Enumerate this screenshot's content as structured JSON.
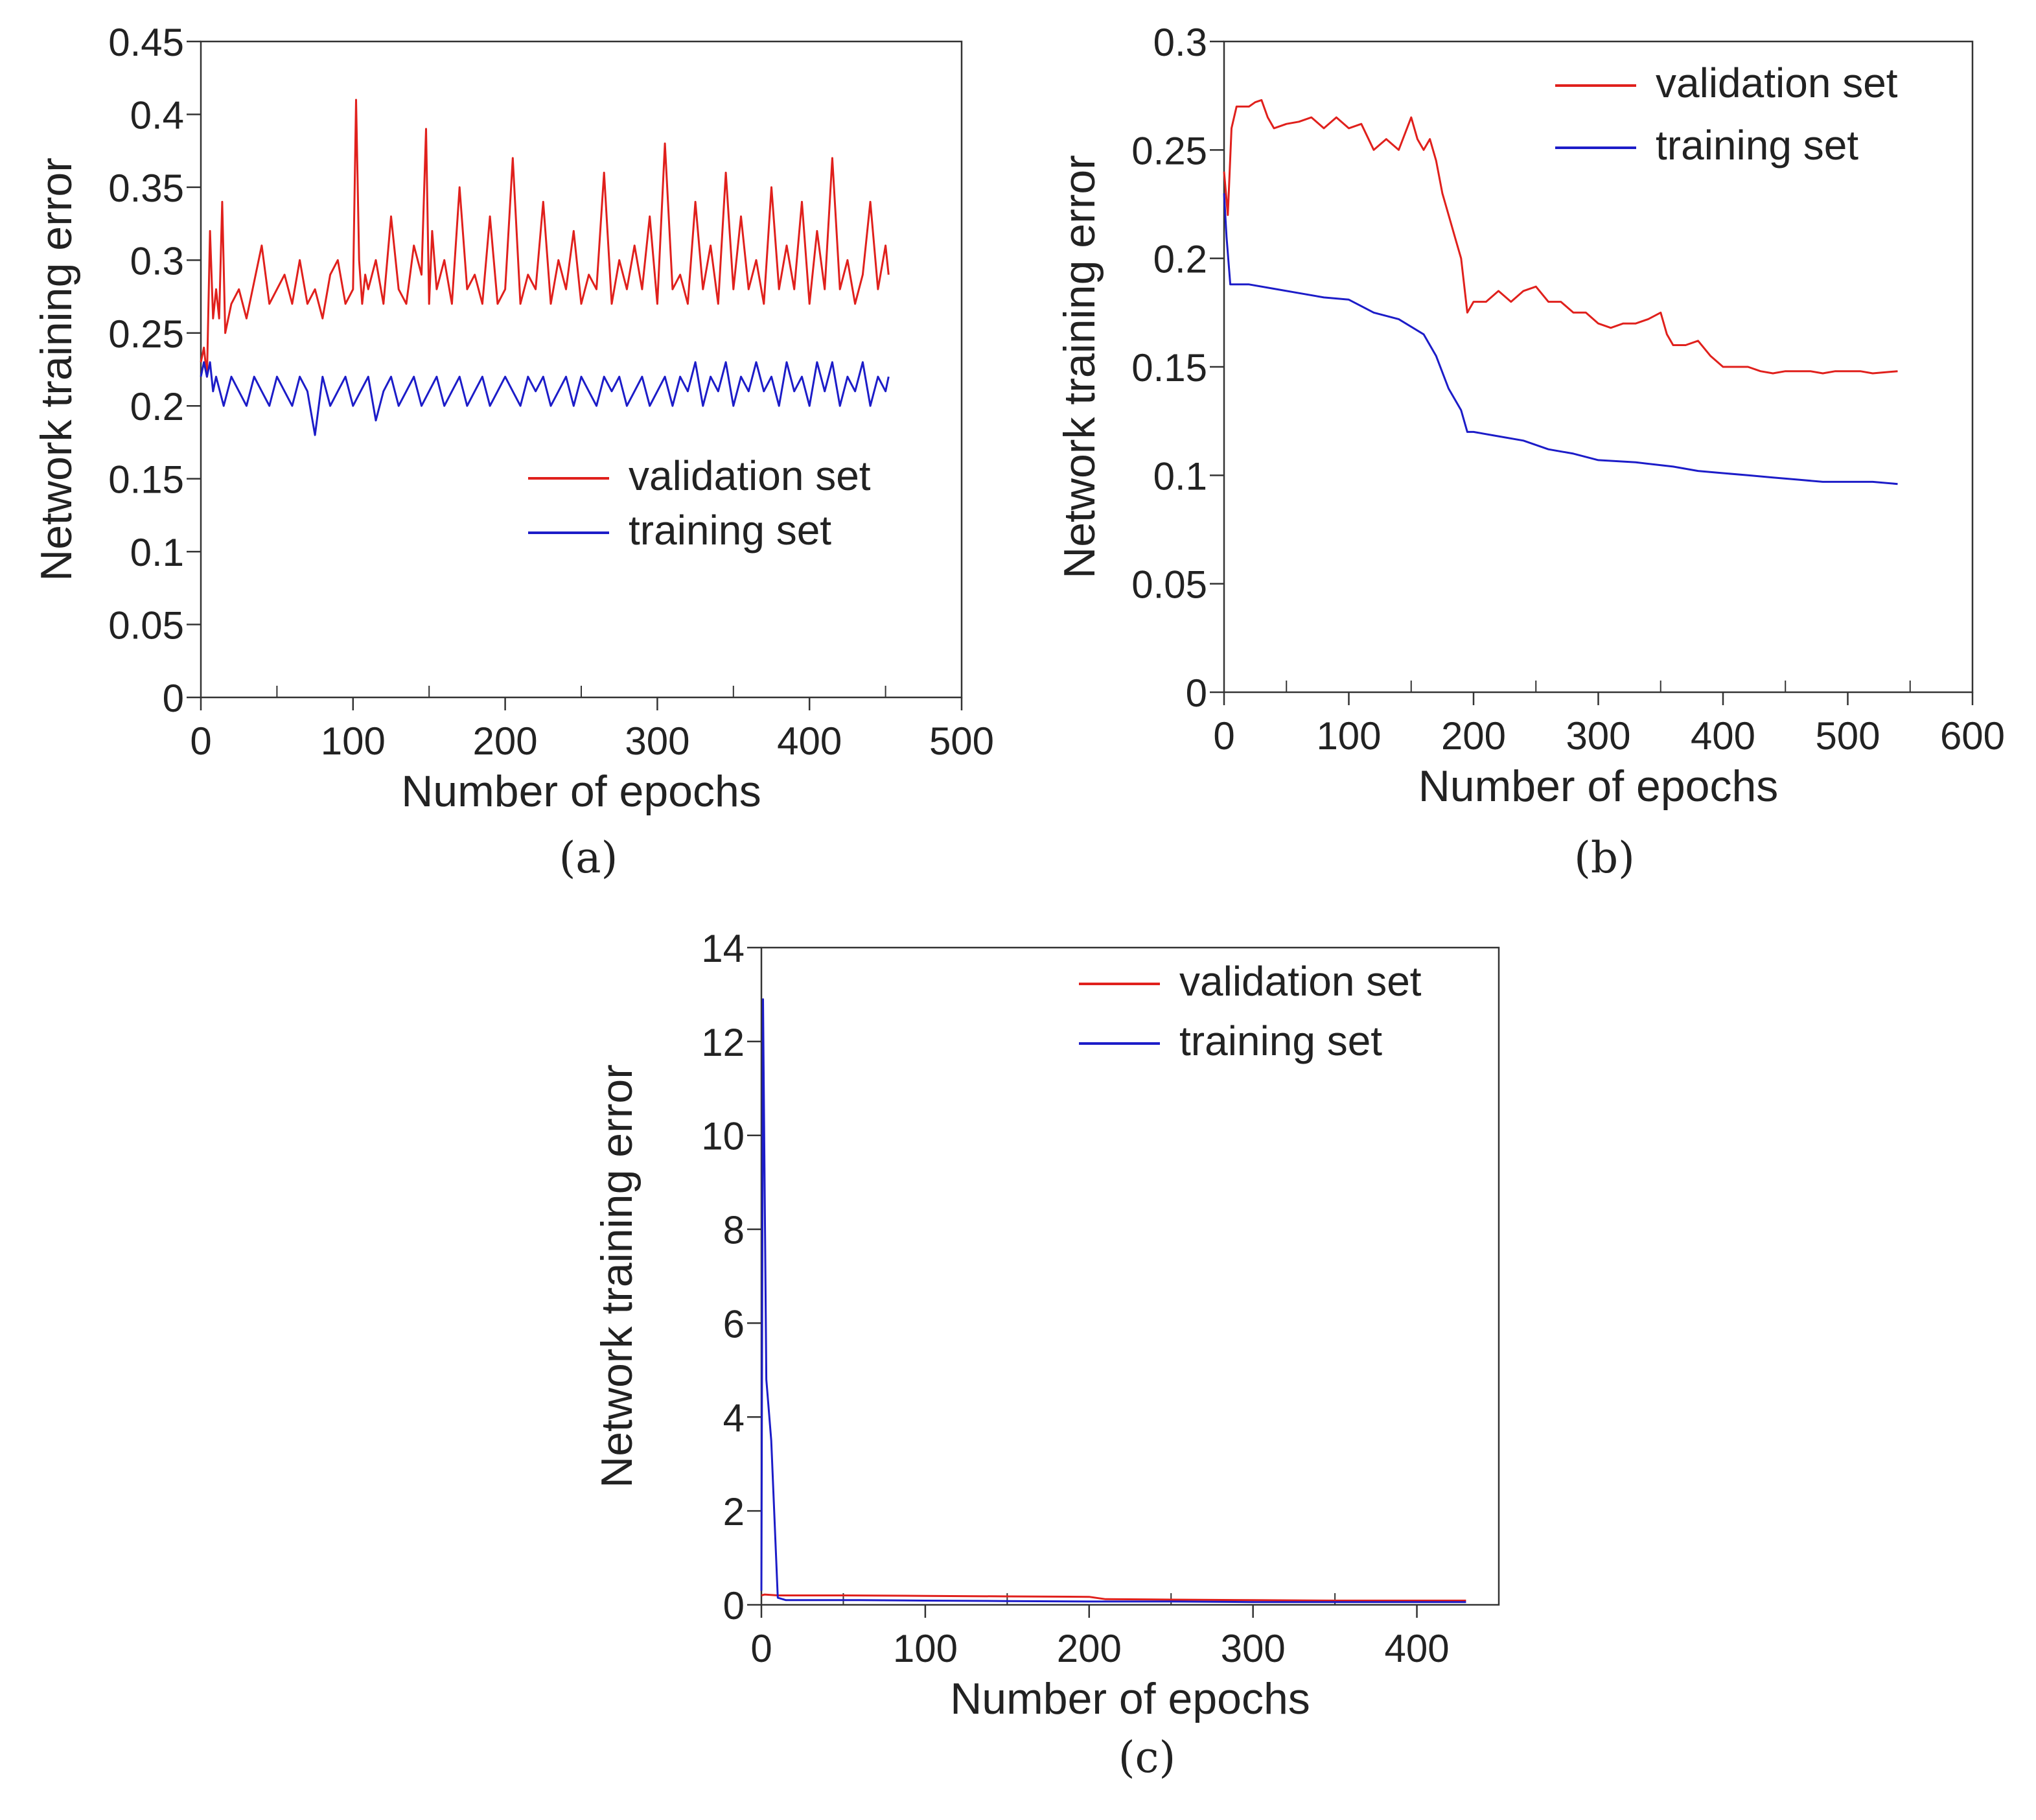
{
  "chart_data": [
    {
      "id": "a",
      "type": "line",
      "caption": "(a)",
      "xlabel": "Number of epochs",
      "ylabel": "Network training error",
      "xlim": [
        0,
        500
      ],
      "ylim": [
        0,
        0.45
      ],
      "xticks": [
        0,
        100,
        200,
        300,
        400,
        500
      ],
      "xtick_labels": [
        "0",
        "100",
        "200",
        "300",
        "400",
        "500"
      ],
      "yticks": [
        0,
        0.05,
        0.1,
        0.15,
        0.2,
        0.25,
        0.3,
        0.35,
        0.4,
        0.45
      ],
      "ytick_labels": [
        "0",
        "0.05",
        "0.1",
        "0.15",
        "0.2",
        "0.25",
        "0.3",
        "0.35",
        "0.4",
        "0.45"
      ],
      "legend": {
        "position": "center-right",
        "entries": [
          "validation set",
          "training set"
        ]
      },
      "series": [
        {
          "name": "validation set",
          "color": "#e0201c",
          "x": [
            0,
            2,
            4,
            6,
            8,
            10,
            12,
            14,
            16,
            20,
            25,
            30,
            40,
            45,
            50,
            55,
            60,
            65,
            70,
            75,
            80,
            85,
            90,
            95,
            100,
            102,
            104,
            106,
            108,
            110,
            115,
            120,
            125,
            130,
            135,
            140,
            145,
            148,
            150,
            152,
            155,
            160,
            165,
            170,
            175,
            180,
            185,
            190,
            195,
            200,
            205,
            210,
            215,
            220,
            225,
            230,
            235,
            240,
            245,
            250,
            255,
            260,
            265,
            270,
            275,
            280,
            285,
            290,
            295,
            300,
            305,
            310,
            315,
            320,
            325,
            330,
            335,
            340,
            345,
            350,
            355,
            360,
            365,
            370,
            375,
            380,
            385,
            390,
            395,
            400,
            405,
            410,
            415,
            420,
            425,
            430,
            435,
            440,
            445,
            450,
            452
          ],
          "y": [
            0.23,
            0.24,
            0.22,
            0.32,
            0.26,
            0.28,
            0.26,
            0.34,
            0.25,
            0.27,
            0.28,
            0.26,
            0.31,
            0.27,
            0.28,
            0.29,
            0.27,
            0.3,
            0.27,
            0.28,
            0.26,
            0.29,
            0.3,
            0.27,
            0.28,
            0.41,
            0.3,
            0.27,
            0.29,
            0.28,
            0.3,
            0.27,
            0.33,
            0.28,
            0.27,
            0.31,
            0.29,
            0.39,
            0.27,
            0.32,
            0.28,
            0.3,
            0.27,
            0.35,
            0.28,
            0.29,
            0.27,
            0.33,
            0.27,
            0.28,
            0.37,
            0.27,
            0.29,
            0.28,
            0.34,
            0.27,
            0.3,
            0.28,
            0.32,
            0.27,
            0.29,
            0.28,
            0.36,
            0.27,
            0.3,
            0.28,
            0.31,
            0.28,
            0.33,
            0.27,
            0.38,
            0.28,
            0.29,
            0.27,
            0.34,
            0.28,
            0.31,
            0.27,
            0.36,
            0.28,
            0.33,
            0.28,
            0.3,
            0.27,
            0.35,
            0.28,
            0.31,
            0.28,
            0.34,
            0.27,
            0.32,
            0.28,
            0.37,
            0.28,
            0.3,
            0.27,
            0.29,
            0.34,
            0.28,
            0.31,
            0.29
          ]
        },
        {
          "name": "training set",
          "color": "#1c1cc8",
          "x": [
            0,
            2,
            4,
            6,
            8,
            10,
            15,
            20,
            25,
            30,
            35,
            40,
            45,
            50,
            55,
            60,
            65,
            70,
            75,
            80,
            85,
            90,
            95,
            100,
            105,
            110,
            115,
            120,
            125,
            130,
            135,
            140,
            145,
            150,
            155,
            160,
            165,
            170,
            175,
            180,
            185,
            190,
            195,
            200,
            205,
            210,
            215,
            220,
            225,
            230,
            235,
            240,
            245,
            250,
            255,
            260,
            265,
            270,
            275,
            280,
            285,
            290,
            295,
            300,
            305,
            310,
            315,
            320,
            325,
            330,
            335,
            340,
            345,
            350,
            355,
            360,
            365,
            370,
            375,
            380,
            385,
            390,
            395,
            400,
            405,
            410,
            415,
            420,
            425,
            430,
            435,
            440,
            445,
            450,
            452
          ],
          "y": [
            0.22,
            0.23,
            0.22,
            0.23,
            0.21,
            0.22,
            0.2,
            0.22,
            0.21,
            0.2,
            0.22,
            0.21,
            0.2,
            0.22,
            0.21,
            0.2,
            0.22,
            0.21,
            0.18,
            0.22,
            0.2,
            0.21,
            0.22,
            0.2,
            0.21,
            0.22,
            0.19,
            0.21,
            0.22,
            0.2,
            0.21,
            0.22,
            0.2,
            0.21,
            0.22,
            0.2,
            0.21,
            0.22,
            0.2,
            0.21,
            0.22,
            0.2,
            0.21,
            0.22,
            0.21,
            0.2,
            0.22,
            0.21,
            0.22,
            0.2,
            0.21,
            0.22,
            0.2,
            0.22,
            0.21,
            0.2,
            0.22,
            0.21,
            0.22,
            0.2,
            0.21,
            0.22,
            0.2,
            0.21,
            0.22,
            0.2,
            0.22,
            0.21,
            0.23,
            0.2,
            0.22,
            0.21,
            0.23,
            0.2,
            0.22,
            0.21,
            0.23,
            0.21,
            0.22,
            0.2,
            0.23,
            0.21,
            0.22,
            0.2,
            0.23,
            0.21,
            0.23,
            0.2,
            0.22,
            0.21,
            0.23,
            0.2,
            0.22,
            0.21,
            0.22
          ]
        }
      ]
    },
    {
      "id": "b",
      "type": "line",
      "caption": "(b)",
      "xlabel": "Number of epochs",
      "ylabel": "Network training error",
      "xlim": [
        0,
        600
      ],
      "ylim": [
        0,
        0.3
      ],
      "xticks": [
        0,
        100,
        200,
        300,
        400,
        500,
        600
      ],
      "xtick_labels": [
        "0",
        "100",
        "200",
        "300",
        "400",
        "500",
        "600"
      ],
      "yticks": [
        0,
        0.05,
        0.1,
        0.15,
        0.2,
        0.25,
        0.3
      ],
      "ytick_labels": [
        "0",
        "0.05",
        "0.1",
        "0.15",
        "0.2",
        "0.25",
        "0.3"
      ],
      "legend": {
        "position": "top-right",
        "entries": [
          "validation set",
          "training set"
        ]
      },
      "series": [
        {
          "name": "validation set",
          "color": "#e0201c",
          "x": [
            0,
            3,
            6,
            10,
            15,
            20,
            25,
            30,
            35,
            40,
            50,
            60,
            70,
            80,
            90,
            100,
            110,
            120,
            130,
            140,
            150,
            155,
            160,
            165,
            170,
            175,
            180,
            185,
            190,
            195,
            200,
            210,
            220,
            230,
            240,
            250,
            260,
            270,
            280,
            290,
            300,
            310,
            320,
            330,
            340,
            350,
            355,
            360,
            370,
            380,
            390,
            400,
            410,
            420,
            430,
            440,
            450,
            460,
            470,
            480,
            490,
            500,
            510,
            520,
            540
          ],
          "y": [
            0.24,
            0.22,
            0.26,
            0.27,
            0.27,
            0.27,
            0.272,
            0.273,
            0.265,
            0.26,
            0.262,
            0.263,
            0.265,
            0.26,
            0.265,
            0.26,
            0.262,
            0.25,
            0.255,
            0.25,
            0.265,
            0.255,
            0.25,
            0.255,
            0.245,
            0.23,
            0.22,
            0.21,
            0.2,
            0.175,
            0.18,
            0.18,
            0.185,
            0.18,
            0.185,
            0.187,
            0.18,
            0.18,
            0.175,
            0.175,
            0.17,
            0.168,
            0.17,
            0.17,
            0.172,
            0.175,
            0.165,
            0.16,
            0.16,
            0.162,
            0.155,
            0.15,
            0.15,
            0.15,
            0.148,
            0.147,
            0.148,
            0.148,
            0.148,
            0.147,
            0.148,
            0.148,
            0.148,
            0.147,
            0.148
          ]
        },
        {
          "name": "training set",
          "color": "#1c1cc8",
          "x": [
            0,
            2,
            5,
            10,
            20,
            40,
            60,
            80,
            100,
            120,
            140,
            160,
            170,
            180,
            190,
            195,
            200,
            220,
            240,
            260,
            280,
            300,
            330,
            360,
            380,
            400,
            420,
            440,
            460,
            480,
            500,
            520,
            540
          ],
          "y": [
            0.23,
            0.21,
            0.188,
            0.188,
            0.188,
            0.186,
            0.184,
            0.182,
            0.181,
            0.175,
            0.172,
            0.165,
            0.155,
            0.14,
            0.13,
            0.12,
            0.12,
            0.118,
            0.116,
            0.112,
            0.11,
            0.107,
            0.106,
            0.104,
            0.102,
            0.101,
            0.1,
            0.099,
            0.098,
            0.097,
            0.097,
            0.097,
            0.096
          ]
        }
      ]
    },
    {
      "id": "c",
      "type": "line",
      "caption": "(c)",
      "xlabel": "Number of epochs",
      "ylabel": "Network training error",
      "xlim": [
        0,
        450
      ],
      "ylim": [
        0,
        14
      ],
      "xticks": [
        0,
        100,
        200,
        300,
        400
      ],
      "xtick_labels": [
        "0",
        "100",
        "200",
        "300",
        "400"
      ],
      "yticks": [
        0,
        2,
        4,
        6,
        8,
        10,
        12,
        14
      ],
      "ytick_labels": [
        "0",
        "2",
        "4",
        "6",
        "8",
        "10",
        "12",
        "14"
      ],
      "legend": {
        "position": "top-right",
        "entries": [
          "validation set",
          "training set"
        ]
      },
      "series": [
        {
          "name": "validation set",
          "color": "#e0201c",
          "x": [
            0,
            2,
            10,
            50,
            100,
            150,
            200,
            210,
            250,
            300,
            350,
            400,
            430
          ],
          "y": [
            0.2,
            0.22,
            0.2,
            0.2,
            0.19,
            0.18,
            0.17,
            0.12,
            0.11,
            0.1,
            0.09,
            0.09,
            0.09
          ]
        },
        {
          "name": "training set",
          "color": "#1c1cc8",
          "x": [
            0,
            1,
            3,
            6,
            10,
            15,
            30,
            60,
            100,
            150,
            200,
            250,
            300,
            350,
            400,
            430
          ],
          "y": [
            0.3,
            12.9,
            4.8,
            3.5,
            0.15,
            0.1,
            0.1,
            0.1,
            0.09,
            0.08,
            0.07,
            0.07,
            0.06,
            0.06,
            0.06,
            0.06
          ]
        }
      ]
    }
  ]
}
